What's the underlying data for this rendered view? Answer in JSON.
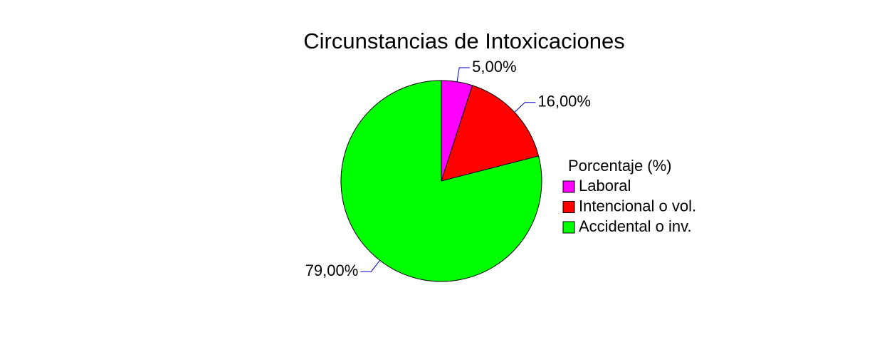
{
  "chart_data": {
    "type": "pie",
    "title": "Circunstancias de Intoxicaciones",
    "categories": [
      "Laboral",
      "Intencional o vol.",
      "Accidental o inv."
    ],
    "values": [
      5,
      16,
      79
    ],
    "value_labels": [
      "5,00%",
      "16,00%",
      "79,00%"
    ],
    "colors": [
      "#ff00ff",
      "#ff0000",
      "#00ff00"
    ],
    "legend_title": "Porcentaje (%)",
    "legend_position": "right"
  }
}
